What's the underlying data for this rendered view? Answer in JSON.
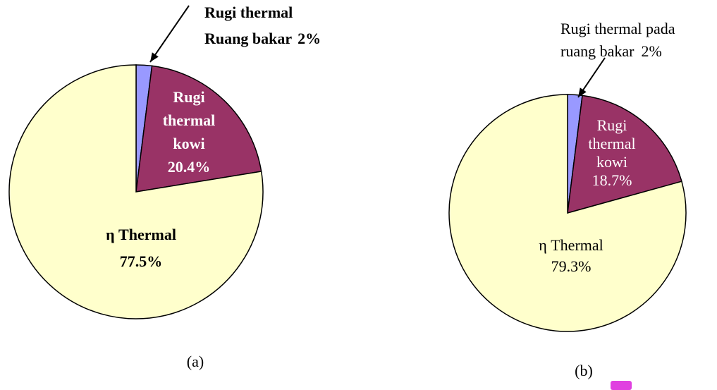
{
  "chart_data": [
    {
      "type": "pie",
      "caption": "(a)",
      "categories": [
        [
          "Rugi thermal",
          "Ruang bakar"
        ],
        [
          "Rugi",
          "thermal",
          "kowi"
        ],
        [
          "η Thermal"
        ]
      ],
      "values": [
        2,
        20.4,
        77.5
      ],
      "value_labels": [
        "2%",
        "20.4%",
        "77.5%"
      ],
      "colors": [
        "#9999ff",
        "#993366",
        "#ffffcc"
      ]
    },
    {
      "type": "pie",
      "caption": "(b)",
      "categories": [
        [
          "Rugi thermal pada",
          "ruang bakar"
        ],
        [
          "Rugi",
          "thermal",
          "kowi"
        ],
        [
          "η Thermal"
        ]
      ],
      "values": [
        2,
        18.7,
        79.3
      ],
      "value_labels": [
        "2%",
        "18.7%",
        "79.3%"
      ],
      "colors": [
        "#9999ff",
        "#993366",
        "#ffffcc"
      ]
    }
  ]
}
